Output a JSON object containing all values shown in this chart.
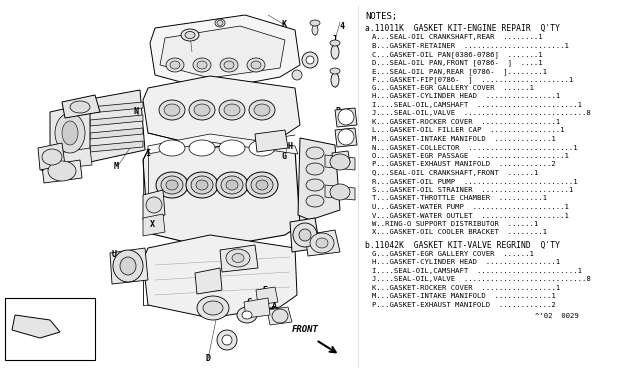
{
  "bg_color": "#ffffff",
  "text_color": "#000000",
  "line_color": "#000000",
  "notes_title": "NOTES;",
  "section_a_header": "a.11011K  GASKET KIT-ENGINE REPAIR  Q'TY",
  "section_a_items": [
    "A...SEAL-OIL CRANKSHAFT,REAR  ........1",
    "B...GASKET-RETAINER  .......................1",
    "C...GASKET-OIL PAN[0386-0786]  .......1",
    "D...SEAL-OIL PAN,FRONT [0786-  ]  ....1",
    "E...SEAL-OIL PAN,REAR [0786-  ]........1",
    "F...GASKET-FIP[0786-  ]  ....................1",
    "G...GASKET-EGR GALLERY COVER  ......1",
    "H...GASKET-CYLINDER HEAD  ................1",
    "I....SEAL-OIL,CAMSHAFT  .......................1",
    "J....SEAL-OIL,VALVE  ............................8",
    "K...GASKET-ROCKER COVER  .................1",
    "L...GASKET-OIL FILLER CAP  ................1",
    "M...GASKET-INTAKE MANIFOLD  .............1",
    "N...GASKET-COLLECTOR  ........................1",
    "O...GASKET-EGR PASSAGE  ....................1",
    "P...GASKET-EXHAUST MANIFOLD  ............2",
    "Q...SEAL-OIL CRANKSHAFT,FRONT  ......1",
    "R...GASKET-OIL PUMP  .........................1",
    "S...GASKET-OIL STRAINER  ....................1",
    "T...GASKET-THROTTLE CHAMBER  ..........1",
    "U...GASKET-WATER PUMP  .....................1",
    "V...GASKET-WATER OUTLET  ...................1",
    "W..RING-O SUPPORT DISTRIBUTOR  ......1",
    "X...GASKET-OIL COOLER BRACKET  ........1"
  ],
  "section_b_header": "b.11042K  GASKET KIT-VALVE REGRIND  Q'TY",
  "section_b_items": [
    "G...GASKET-EGR GALLERY COVER  ......1",
    "H...GASKET-CYLINDER HEAD  ................1",
    "I....SEAL-OIL,CAMSHAFT  .......................1",
    "J....SEAL-OIL,VALVE  ............................8",
    "K...GASKET-ROCKER COVER  .................1",
    "M...GASKET-INTAKE MANIFOLD  .............1",
    "P...GASKET-EXHAUST MANIFOLD  ............2"
  ],
  "footer": "^'02  0029"
}
